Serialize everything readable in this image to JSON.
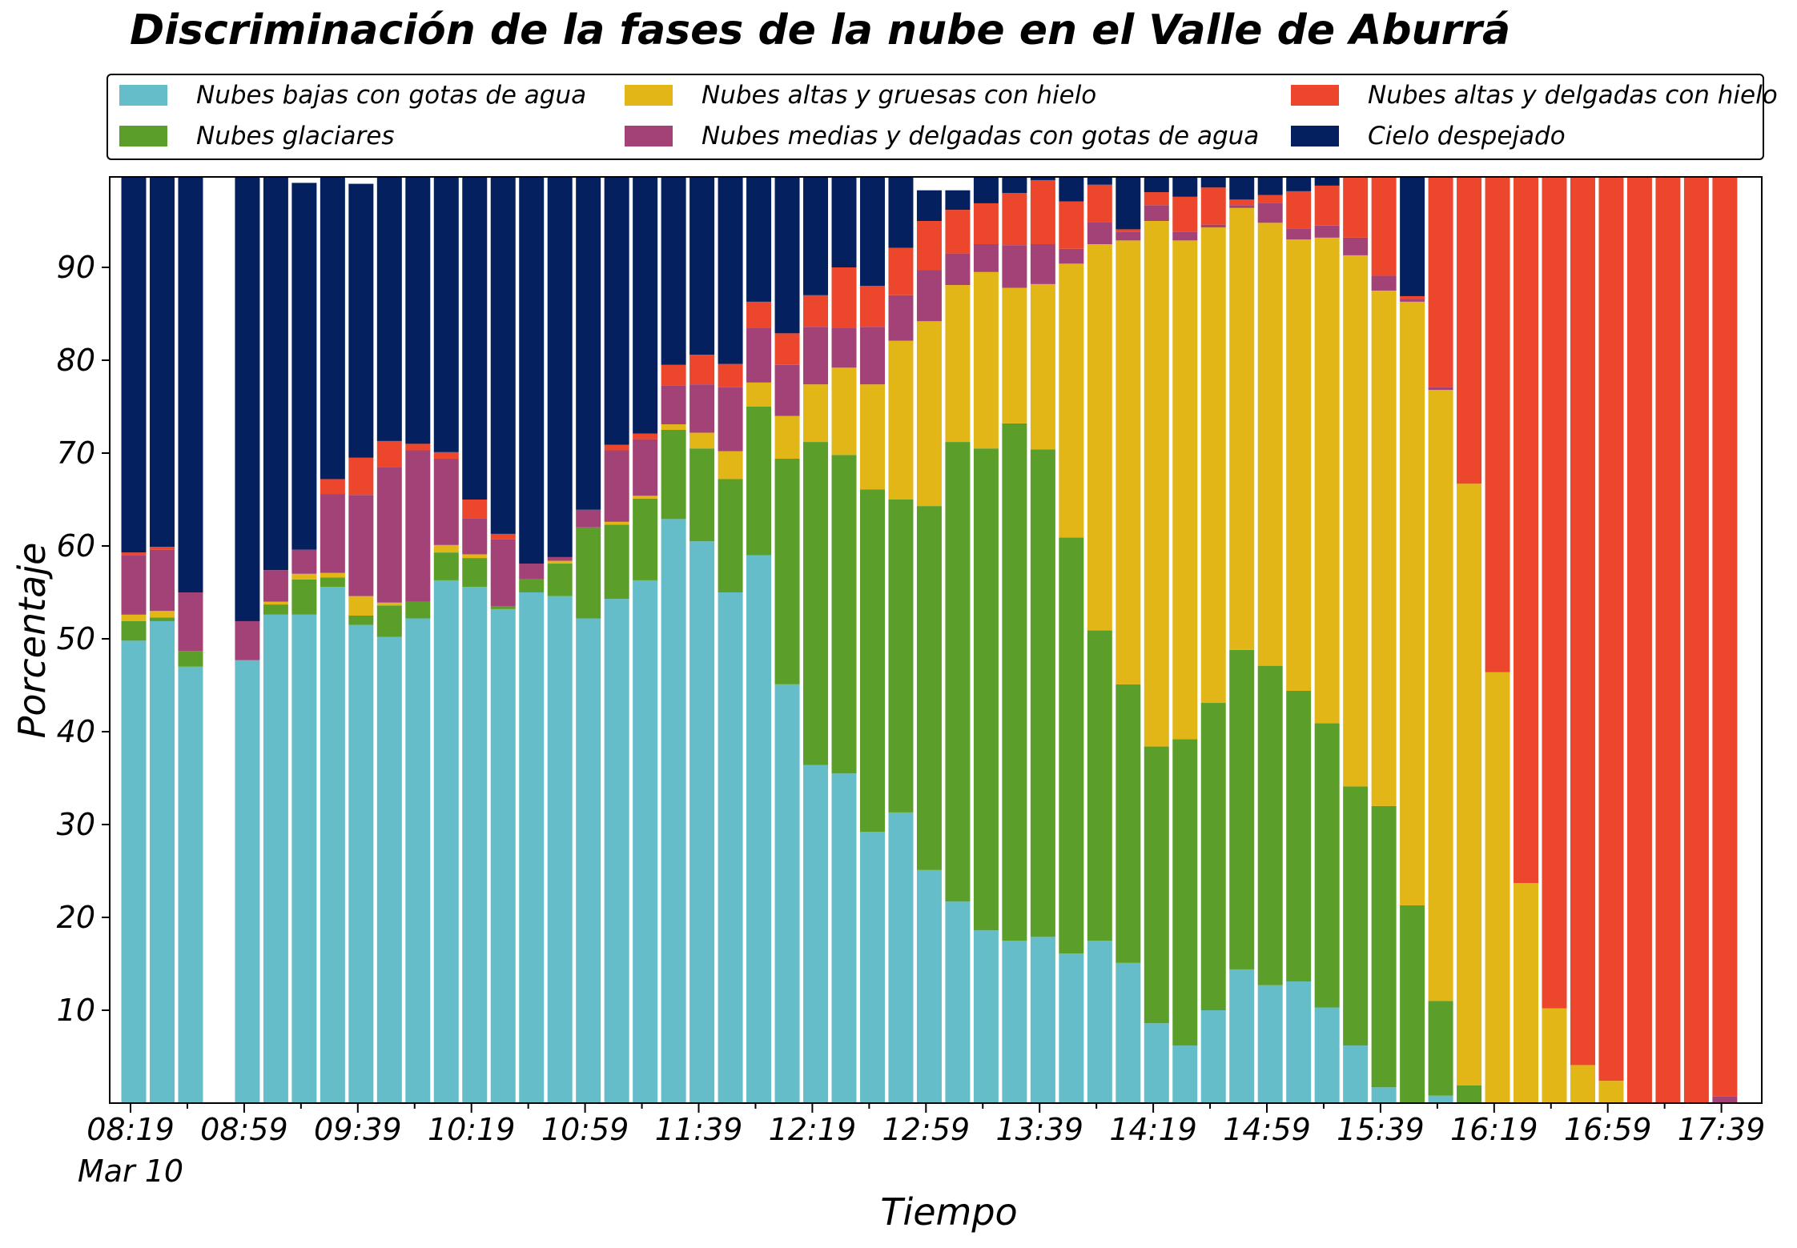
{
  "colors": {
    "low_water": "#65bdc9",
    "glacial": "#5b9e2a",
    "high_thick_ice": "#e2b616",
    "mid_thin_water": "#a34277",
    "high_thin_ice": "#ec472c",
    "clear": "#04205e"
  },
  "chart_data": {
    "type": "bar",
    "stacked": true,
    "title": "Discriminación de la fases de la nube en el Valle de Aburrá",
    "xlabel": "Tiempo",
    "ylabel": "Porcentaje",
    "ylim": [
      0,
      100
    ],
    "yticks": [
      "10",
      "20",
      "30",
      "40",
      "50",
      "60",
      "70",
      "80",
      "90"
    ],
    "xticks": [
      "08:19",
      "08:59",
      "09:39",
      "10:19",
      "10:59",
      "11:39",
      "12:19",
      "12:59",
      "13:39",
      "14:19",
      "14:59",
      "15:39",
      "16:19",
      "16:59",
      "17:39"
    ],
    "xdate_label": "Mar 10",
    "grid": false,
    "legend_position": "top",
    "categories": [
      "08:24",
      "08:34",
      "08:44",
      "08:54",
      "09:04",
      "09:14",
      "09:24",
      "09:34",
      "09:44",
      "09:54",
      "10:04",
      "10:14",
      "10:24",
      "10:34",
      "10:44",
      "10:54",
      "11:04",
      "11:14",
      "11:24",
      "11:34",
      "11:44",
      "11:54",
      "12:04",
      "12:14",
      "12:24",
      "12:34",
      "12:44",
      "12:54",
      "13:04",
      "13:14",
      "13:24",
      "13:34",
      "13:44",
      "13:54",
      "14:04",
      "14:14",
      "14:24",
      "14:34",
      "14:44",
      "14:54",
      "15:04",
      "15:14",
      "15:24",
      "15:34",
      "15:44",
      "15:54",
      "16:04",
      "16:14",
      "16:24",
      "16:34",
      "16:44",
      "16:54",
      "17:04",
      "17:14",
      "17:24",
      "17:34",
      "17:44"
    ],
    "series": [
      {
        "name": "Nubes bajas con gotas de agua",
        "color_key": "low_water",
        "values": [
          49.8,
          51.9,
          47.0,
          0,
          47.7,
          52.6,
          52.6,
          55.6,
          51.5,
          50.2,
          52.2,
          56.3,
          55.6,
          53.2,
          55.0,
          54.6,
          52.2,
          54.3,
          56.3,
          62.9,
          60.5,
          55.0,
          59.0,
          45.1,
          36.4,
          35.5,
          29.2,
          31.3,
          25.1,
          21.7,
          18.6,
          17.5,
          17.9,
          16.1,
          17.5,
          15.1,
          8.6,
          6.2,
          10.0,
          14.4,
          12.7,
          13.1,
          10.3,
          6.2,
          1.7,
          0.0,
          0.8,
          0.0,
          0.0,
          0.0,
          0.0,
          0.0,
          0.0,
          0.0,
          0.0,
          0.0,
          0.0
        ]
      },
      {
        "name": "Nubes glaciares",
        "color_key": "glacial",
        "values": [
          2.1,
          0.4,
          1.7,
          0,
          0,
          1.1,
          3.8,
          1.0,
          1.0,
          3.4,
          1.8,
          3.0,
          3.1,
          0.3,
          1.4,
          3.5,
          9.8,
          8.0,
          8.8,
          9.6,
          10.0,
          12.2,
          16.0,
          24.3,
          34.8,
          34.3,
          36.9,
          33.7,
          39.2,
          49.5,
          51.9,
          55.7,
          52.5,
          44.8,
          33.4,
          30.0,
          29.8,
          33.0,
          33.1,
          34.4,
          34.4,
          31.3,
          30.6,
          27.9,
          30.3,
          21.3,
          10.2,
          1.9,
          0.0,
          0.0,
          0.0,
          0.0,
          0.0,
          0.0,
          0.0,
          0.0,
          0.0
        ]
      },
      {
        "name": "Nubes altas y gruesas con hielo",
        "color_key": "high_thick_ice",
        "values": [
          0.7,
          0.7,
          0,
          0,
          0,
          0.3,
          0.6,
          0.5,
          2.1,
          0.3,
          0,
          0.8,
          0.4,
          0,
          0,
          0.3,
          0,
          0.3,
          0.3,
          0.6,
          1.7,
          3.0,
          2.6,
          4.6,
          6.2,
          9.4,
          11.3,
          17.1,
          19.9,
          16.9,
          19.0,
          14.6,
          17.8,
          29.5,
          41.6,
          47.8,
          56.6,
          53.7,
          51.2,
          47.6,
          47.7,
          48.6,
          52.3,
          57.2,
          55.5,
          65.0,
          65.8,
          64.8,
          46.4,
          23.7,
          10.2,
          4.1,
          2.4,
          0,
          0,
          0,
          0
        ]
      },
      {
        "name": "Nubes medias y delgadas con gotas de agua",
        "color_key": "mid_thin_water",
        "values": [
          6.4,
          6.6,
          6.3,
          0,
          4.2,
          3.4,
          2.6,
          8.5,
          10.9,
          14.6,
          16.3,
          9.3,
          3.9,
          7.2,
          1.7,
          0.4,
          1.9,
          7.7,
          6.1,
          4.2,
          5.2,
          6.9,
          5.9,
          5.5,
          6.2,
          4.3,
          6.2,
          4.9,
          5.5,
          3.4,
          3.0,
          4.6,
          4.3,
          1.6,
          2.4,
          0.9,
          1.7,
          0.9,
          0.3,
          0.3,
          2.1,
          1.2,
          1.3,
          1.9,
          1.6,
          0.3,
          0.3,
          0,
          0,
          0,
          0,
          0,
          0,
          0,
          0,
          0,
          0.7
        ]
      },
      {
        "name": "Nubes altas y delgadas con hielo",
        "color_key": "high_thin_ice",
        "values": [
          0.3,
          0.3,
          0,
          0,
          0,
          0,
          0,
          1.6,
          4.0,
          2.8,
          0.7,
          0.7,
          2.0,
          0.6,
          0,
          0,
          0,
          0.6,
          0.6,
          2.2,
          3.2,
          2.5,
          2.8,
          3.4,
          3.4,
          6.5,
          4.4,
          5.1,
          5.3,
          4.7,
          4.4,
          5.6,
          6.9,
          5.1,
          4.0,
          0.3,
          1.4,
          3.8,
          4.0,
          0.6,
          0.9,
          4.0,
          4.3,
          6.8,
          10.9,
          0.3,
          23.4,
          33.3,
          53.6,
          76.3,
          89.8,
          95.9,
          97.6,
          100,
          100,
          100,
          99.3
        ]
      },
      {
        "name": "Cielo despejado",
        "color_key": "clear",
        "values": [
          40.7,
          40.1,
          45.0,
          0,
          48.1,
          42.6,
          39.5,
          32.8,
          29.5,
          28.7,
          29.0,
          29.9,
          35.0,
          38.7,
          41.9,
          41.2,
          36.1,
          29.1,
          27.9,
          20.5,
          19.4,
          20.4,
          13.7,
          17.1,
          13.0,
          10.0,
          12.0,
          7.9,
          3.3,
          2.1,
          3.1,
          2.0,
          0.6,
          2.9,
          1.1,
          5.9,
          1.9,
          2.4,
          1.4,
          2.7,
          2.2,
          1.8,
          1.2,
          0,
          0,
          13.1,
          0,
          0,
          0,
          0,
          0,
          0,
          0,
          0,
          0,
          0,
          0
        ]
      }
    ]
  }
}
